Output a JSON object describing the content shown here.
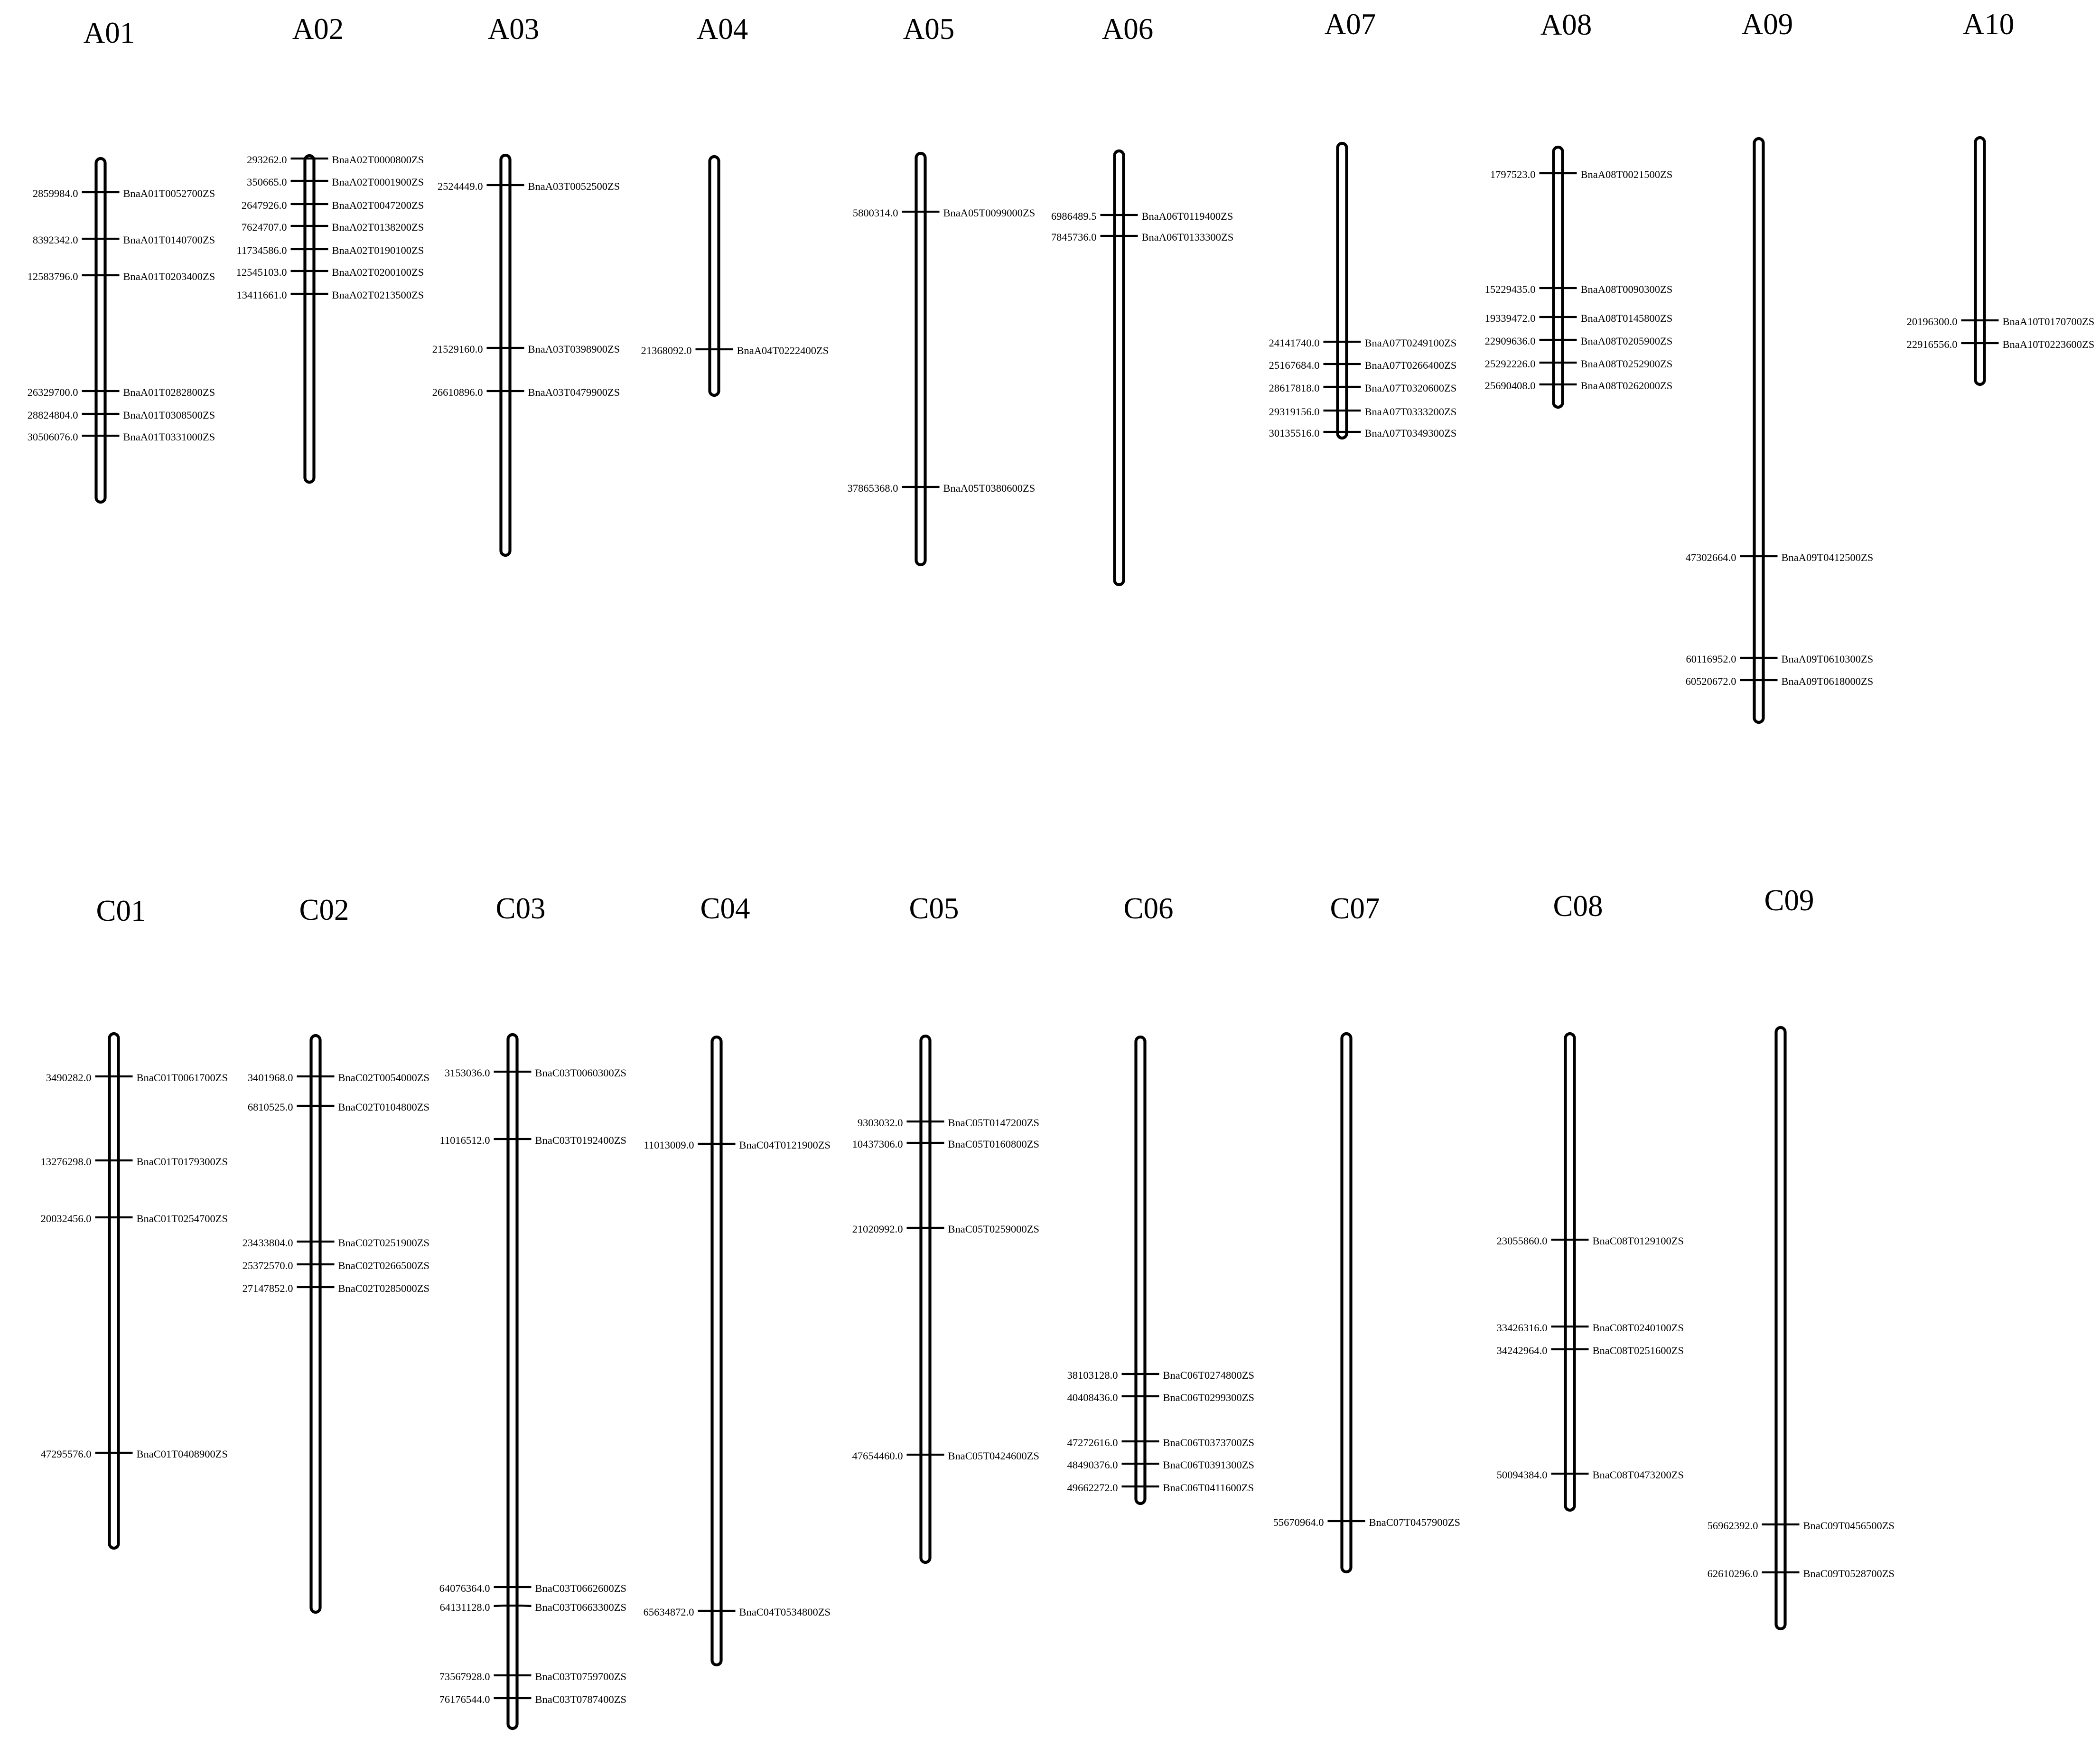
{
  "chromosomes": [
    {
      "name": "A01",
      "markers": [
        {
          "pos": "2859984.0",
          "gene": "BnaA01T0052700ZS"
        },
        {
          "pos": "8392342.0",
          "gene": "BnaA01T0140700ZS"
        },
        {
          "pos": "12583796.0",
          "gene": "BnaA01T0203400ZS"
        },
        {
          "pos": "26329700.0",
          "gene": "BnaA01T0282800ZS"
        },
        {
          "pos": "28824804.0",
          "gene": "BnaA01T0308500ZS"
        },
        {
          "pos": "30506076.0",
          "gene": "BnaA01T0331000ZS"
        }
      ]
    },
    {
      "name": "A02",
      "markers": [
        {
          "pos": "293262.0",
          "gene": "BnaA02T0000800ZS"
        },
        {
          "pos": "350665.0",
          "gene": "BnaA02T0001900ZS"
        },
        {
          "pos": "2647926.0",
          "gene": "BnaA02T0047200ZS"
        },
        {
          "pos": "7624707.0",
          "gene": "BnaA02T0138200ZS"
        },
        {
          "pos": "11734586.0",
          "gene": "BnaA02T0190100ZS"
        },
        {
          "pos": "12545103.0",
          "gene": "BnaA02T0200100ZS"
        },
        {
          "pos": "13411661.0",
          "gene": "BnaA02T0213500ZS"
        }
      ]
    },
    {
      "name": "A03",
      "markers": [
        {
          "pos": "2524449.0",
          "gene": "BnaA03T0052500ZS"
        },
        {
          "pos": "21529160.0",
          "gene": "BnaA03T0398900ZS"
        },
        {
          "pos": "26610896.0",
          "gene": "BnaA03T0479900ZS"
        }
      ]
    },
    {
      "name": "A04",
      "markers": [
        {
          "pos": "21368092.0",
          "gene": "BnaA04T0222400ZS"
        }
      ]
    },
    {
      "name": "A05",
      "markers": [
        {
          "pos": "5800314.0",
          "gene": "BnaA05T0099000ZS"
        },
        {
          "pos": "37865368.0",
          "gene": "BnaA05T0380600ZS"
        }
      ]
    },
    {
      "name": "A06",
      "markers": [
        {
          "pos": "6986489.5",
          "gene": "BnaA06T0119400ZS"
        },
        {
          "pos": "7845736.0",
          "gene": "BnaA06T0133300ZS"
        }
      ]
    },
    {
      "name": "A07",
      "markers": [
        {
          "pos": "24141740.0",
          "gene": "BnaA07T0249100ZS"
        },
        {
          "pos": "25167684.0",
          "gene": "BnaA07T0266400ZS"
        },
        {
          "pos": "28617818.0",
          "gene": "BnaA07T0320600ZS"
        },
        {
          "pos": "29319156.0",
          "gene": "BnaA07T0333200ZS"
        },
        {
          "pos": "30135516.0",
          "gene": "BnaA07T0349300ZS"
        }
      ]
    },
    {
      "name": "A08",
      "markers": [
        {
          "pos": "1797523.0",
          "gene": "BnaA08T0021500ZS"
        },
        {
          "pos": "15229435.0",
          "gene": "BnaA08T0090300ZS"
        },
        {
          "pos": "19339472.0",
          "gene": "BnaA08T0145800ZS"
        },
        {
          "pos": "22909636.0",
          "gene": "BnaA08T0205900ZS"
        },
        {
          "pos": "25292226.0",
          "gene": "BnaA08T0252900ZS"
        },
        {
          "pos": "25690408.0",
          "gene": "BnaA08T0262000ZS"
        }
      ]
    },
    {
      "name": "A09",
      "markers": [
        {
          "pos": "47302664.0",
          "gene": "BnaA09T0412500ZS"
        },
        {
          "pos": "60116952.0",
          "gene": "BnaA09T0610300ZS"
        },
        {
          "pos": "60520672.0",
          "gene": "BnaA09T0618000ZS"
        }
      ]
    },
    {
      "name": "A10",
      "markers": [
        {
          "pos": "20196300.0",
          "gene": "BnaA10T0170700ZS"
        },
        {
          "pos": "22916556.0",
          "gene": "BnaA10T0223600ZS"
        }
      ]
    },
    {
      "name": "C01",
      "markers": [
        {
          "pos": "3490282.0",
          "gene": "BnaC01T0061700ZS"
        },
        {
          "pos": "13276298.0",
          "gene": "BnaC01T0179300ZS"
        },
        {
          "pos": "20032456.0",
          "gene": "BnaC01T0254700ZS"
        },
        {
          "pos": "47295576.0",
          "gene": "BnaC01T0408900ZS"
        }
      ]
    },
    {
      "name": "C02",
      "markers": [
        {
          "pos": "3401968.0",
          "gene": "BnaC02T0054000ZS"
        },
        {
          "pos": "6810525.0",
          "gene": "BnaC02T0104800ZS"
        },
        {
          "pos": "23433804.0",
          "gene": "BnaC02T0251900ZS"
        },
        {
          "pos": "25372570.0",
          "gene": "BnaC02T0266500ZS"
        },
        {
          "pos": "27147852.0",
          "gene": "BnaC02T0285000ZS"
        }
      ]
    },
    {
      "name": "C03",
      "markers": [
        {
          "pos": "3153036.0",
          "gene": "BnaC03T0060300ZS"
        },
        {
          "pos": "11016512.0",
          "gene": "BnaC03T0192400ZS"
        },
        {
          "pos": "64076364.0",
          "gene": "BnaC03T0662600ZS"
        },
        {
          "pos": "64131128.0",
          "gene": "BnaC03T0663300ZS"
        },
        {
          "pos": "73567928.0",
          "gene": "BnaC03T0759700ZS"
        },
        {
          "pos": "76176544.0",
          "gene": "BnaC03T0787400ZS"
        }
      ]
    },
    {
      "name": "C04",
      "markers": [
        {
          "pos": "11013009.0",
          "gene": "BnaC04T0121900ZS"
        },
        {
          "pos": "65634872.0",
          "gene": "BnaC04T0534800ZS"
        }
      ]
    },
    {
      "name": "C05",
      "markers": [
        {
          "pos": "9303032.0",
          "gene": "BnaC05T0147200ZS"
        },
        {
          "pos": "10437306.0",
          "gene": "BnaC05T0160800ZS"
        },
        {
          "pos": "21020992.0",
          "gene": "BnaC05T0259000ZS"
        },
        {
          "pos": "47654460.0",
          "gene": "BnaC05T0424600ZS"
        }
      ]
    },
    {
      "name": "C06",
      "markers": [
        {
          "pos": "38103128.0",
          "gene": "BnaC06T0274800ZS"
        },
        {
          "pos": "40408436.0",
          "gene": "BnaC06T0299300ZS"
        },
        {
          "pos": "47272616.0",
          "gene": "BnaC06T0373700ZS"
        },
        {
          "pos": "48490376.0",
          "gene": "BnaC06T0391300ZS"
        },
        {
          "pos": "49662272.0",
          "gene": "BnaC06T0411600ZS"
        }
      ]
    },
    {
      "name": "C07",
      "markers": [
        {
          "pos": "55670964.0",
          "gene": "BnaC07T0457900ZS"
        }
      ]
    },
    {
      "name": "C08",
      "markers": [
        {
          "pos": "23055860.0",
          "gene": "BnaC08T0129100ZS"
        },
        {
          "pos": "33426316.0",
          "gene": "BnaC08T0240100ZS"
        },
        {
          "pos": "34242964.0",
          "gene": "BnaC08T0251600ZS"
        },
        {
          "pos": "50094384.0",
          "gene": "BnaC08T0473200ZS"
        }
      ]
    },
    {
      "name": "C09",
      "markers": [
        {
          "pos": "56962392.0",
          "gene": "BnaC09T0456500ZS"
        },
        {
          "pos": "62610296.0",
          "gene": "BnaC09T0528700ZS"
        }
      ]
    }
  ]
}
